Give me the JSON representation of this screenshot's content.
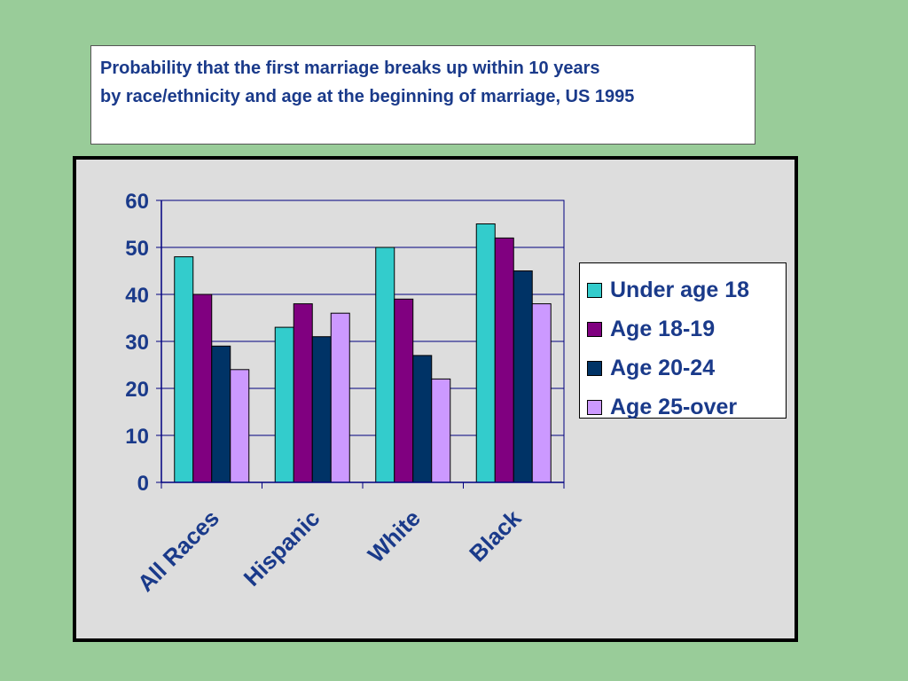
{
  "title": {
    "line1": "Probability that the first marriage breaks up within 10 years",
    "line2": "by race/ethnicity and age at the beginning of marriage, US 1995"
  },
  "colors": {
    "background": "#99cc99",
    "plot_area": "#dddddd",
    "text": "#1a3a8a"
  },
  "chart_data": {
    "type": "bar",
    "categories": [
      "All Races",
      "Hispanic",
      "White",
      "Black"
    ],
    "series": [
      {
        "name": "Under age 18",
        "color": "#33cccc",
        "values": [
          48,
          33,
          50,
          55
        ]
      },
      {
        "name": "Age 18-19",
        "color": "#800080",
        "values": [
          40,
          38,
          39,
          52
        ]
      },
      {
        "name": "Age 20-24",
        "color": "#003366",
        "values": [
          29,
          31,
          27,
          45
        ]
      },
      {
        "name": "Age 25-over",
        "color": "#cc99ff",
        "values": [
          24,
          36,
          22,
          38
        ]
      }
    ],
    "yticks": [
      0,
      10,
      20,
      30,
      40,
      50,
      60
    ],
    "ylim": [
      0,
      60
    ],
    "grid": true,
    "legend": "right"
  }
}
